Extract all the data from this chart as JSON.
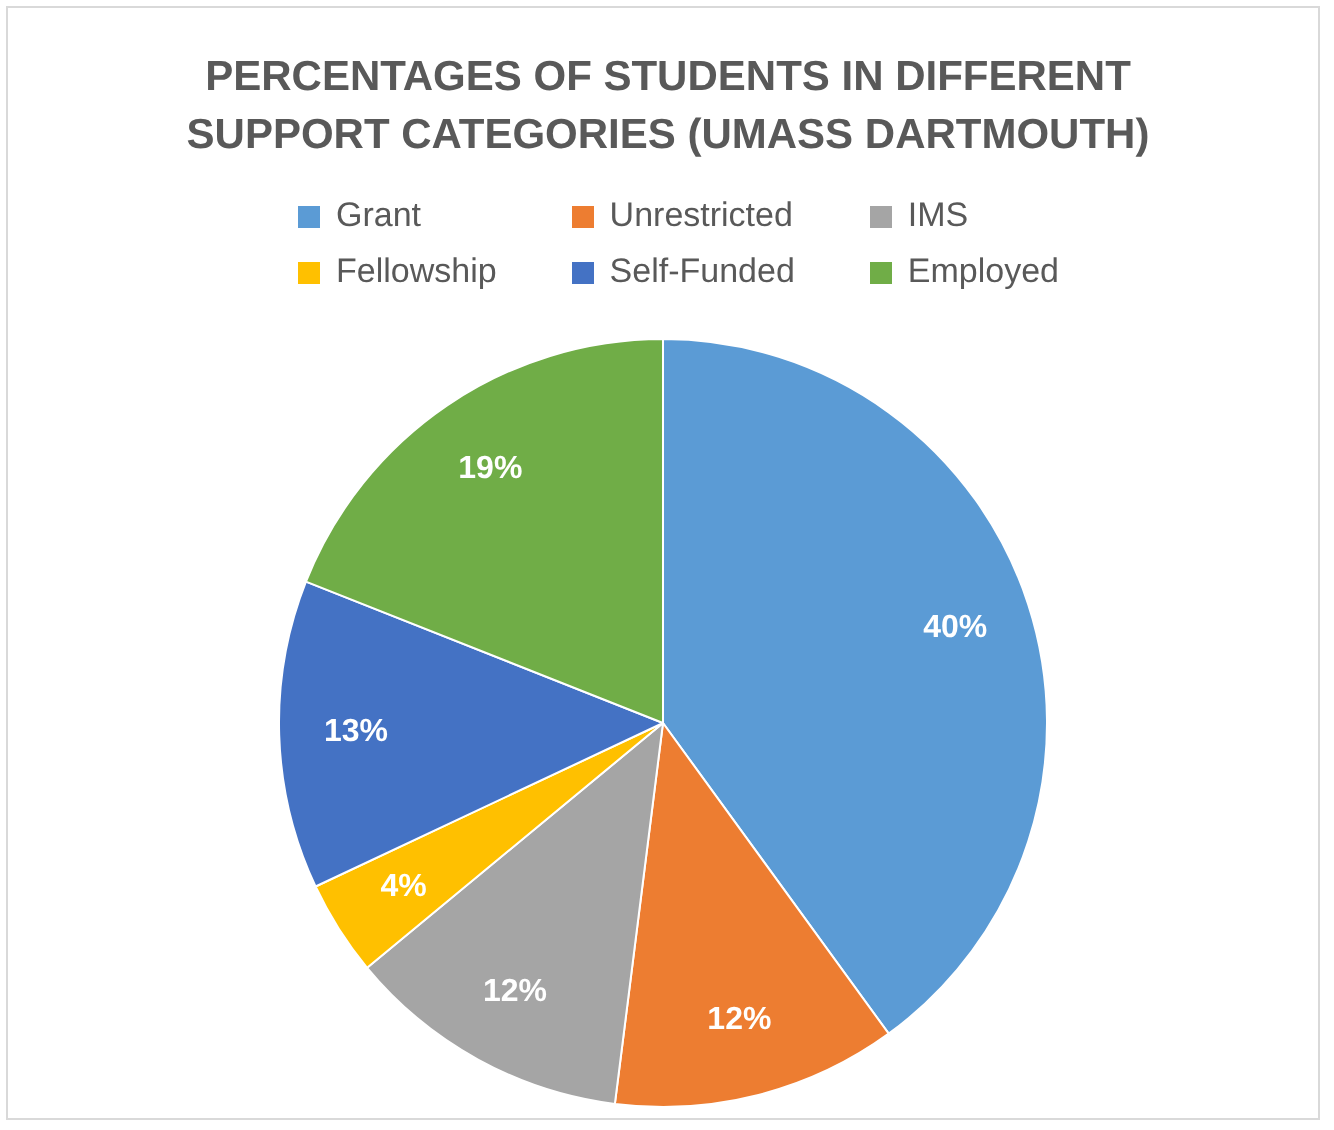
{
  "chart_data": {
    "type": "pie",
    "title": "PERCENTAGES OF STUDENTS IN DIFFERENT SUPPORT CATEGORIES (UMASS DARTMOUTH)",
    "categories": [
      "Grant",
      "Unrestricted",
      "IMS",
      "Fellowship",
      "Self-Funded",
      "Employed"
    ],
    "values": [
      40,
      12,
      12,
      4,
      13,
      19
    ],
    "colors": [
      "#5b9bd5",
      "#ed7d31",
      "#a5a5a5",
      "#ffc000",
      "#4472c4",
      "#70ad47"
    ],
    "value_labels": [
      "40%",
      "12%",
      "12%",
      "4%",
      "13%",
      "19%"
    ],
    "legend": "top"
  }
}
